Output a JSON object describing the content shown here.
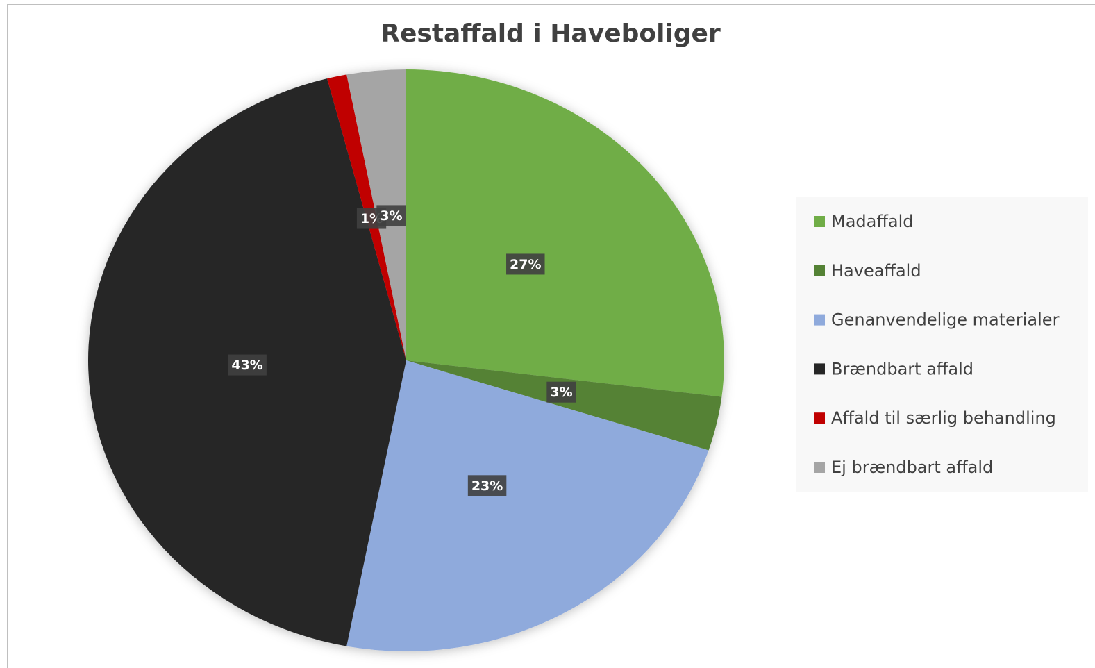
{
  "chart_data": {
    "type": "pie",
    "title": "Restaffald i Haveboliger",
    "categories": [
      "Madaffald",
      "Haveaffald",
      "Genanvendelige materialer",
      "Brændbart affald",
      "Affald til særlig behandling",
      "Ej brændbart affald"
    ],
    "values": [
      27,
      3,
      23,
      43,
      1,
      3
    ],
    "value_labels": [
      "27%",
      "3%",
      "23%",
      "43%",
      "1%",
      "3%"
    ],
    "colors": [
      "#70ad47",
      "#548235",
      "#8faadc",
      "#262626",
      "#c00000",
      "#a5a5a5"
    ],
    "legend": "right"
  }
}
